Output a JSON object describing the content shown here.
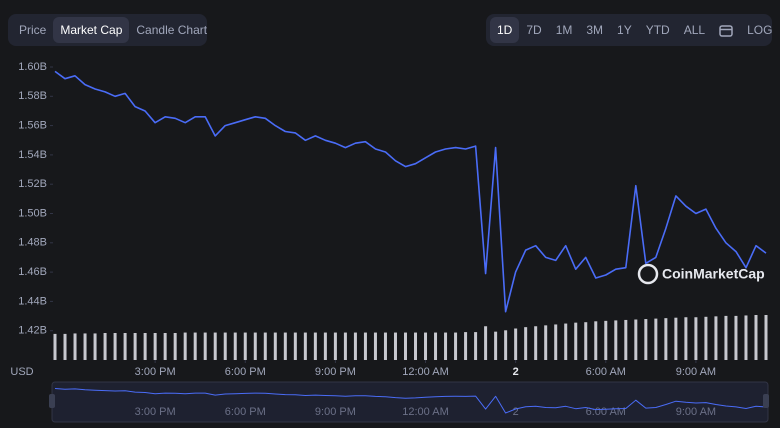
{
  "controls": {
    "views": [
      "Price",
      "Market Cap",
      "Candle Chart"
    ],
    "ranges": [
      "1D",
      "7D",
      "1M",
      "3M",
      "1Y",
      "YTD",
      "ALL"
    ],
    "log": "LOG"
  },
  "watermark": "CoinMarketCap",
  "chart_data": {
    "type": "line",
    "currency": "USD",
    "color": "#4a6cf7",
    "ylim": [
      1.4,
      1.6
    ],
    "yticks": [
      {
        "value": 1.42,
        "label": "1.42B"
      },
      {
        "value": 1.44,
        "label": "1.44B"
      },
      {
        "value": 1.46,
        "label": "1.46B"
      },
      {
        "value": 1.48,
        "label": "1.48B"
      },
      {
        "value": 1.5,
        "label": "1.50B"
      },
      {
        "value": 1.52,
        "label": "1.52B"
      },
      {
        "value": 1.54,
        "label": "1.54B"
      },
      {
        "value": 1.56,
        "label": "1.56B"
      },
      {
        "value": 1.58,
        "label": "1.58B"
      },
      {
        "value": 1.6,
        "label": "1.60B"
      }
    ],
    "xlim": [
      0,
      71
    ],
    "xticks": [
      {
        "value": 10,
        "label": "3:00 PM"
      },
      {
        "value": 19,
        "label": "6:00 PM"
      },
      {
        "value": 28,
        "label": "9:00 PM"
      },
      {
        "value": 37,
        "label": "12:00 AM"
      },
      {
        "value": 46,
        "label": "2"
      },
      {
        "value": 55,
        "label": "6:00 AM"
      },
      {
        "value": 64,
        "label": "9:00 AM"
      }
    ],
    "values": [
      1.597,
      1.592,
      1.594,
      1.588,
      1.585,
      1.583,
      1.58,
      1.582,
      1.573,
      1.57,
      1.562,
      1.566,
      1.565,
      1.562,
      1.566,
      1.566,
      1.553,
      1.56,
      1.562,
      1.564,
      1.566,
      1.565,
      1.56,
      1.556,
      1.555,
      1.55,
      1.553,
      1.55,
      1.548,
      1.545,
      1.548,
      1.549,
      1.544,
      1.542,
      1.536,
      1.532,
      1.534,
      1.538,
      1.542,
      1.544,
      1.545,
      1.544,
      1.546,
      1.459,
      1.545,
      1.433,
      1.46,
      1.475,
      1.478,
      1.47,
      1.468,
      1.478,
      1.462,
      1.47,
      1.456,
      1.458,
      1.462,
      1.463,
      1.519,
      1.466,
      1.47,
      1.49,
      1.512,
      1.505,
      1.5,
      1.503,
      1.49,
      1.48,
      1.474,
      1.463,
      1.478,
      1.473
    ],
    "volume": {
      "color": "#e6e8ee",
      "vlim": [
        0,
        100
      ],
      "values": [
        58,
        58,
        59,
        59,
        59,
        60,
        60,
        60,
        60,
        60,
        60,
        60,
        60,
        61,
        61,
        61,
        61,
        61,
        61,
        61,
        61,
        61,
        61,
        61,
        61,
        61,
        61,
        61,
        61,
        61,
        61,
        61,
        61,
        61,
        61,
        61,
        61,
        61,
        61,
        61,
        61,
        62,
        62,
        75,
        63,
        66,
        70,
        73,
        75,
        77,
        79,
        81,
        83,
        84,
        86,
        87,
        88,
        89,
        90,
        91,
        92,
        93,
        94,
        95,
        95,
        96,
        97,
        98,
        98,
        99,
        100,
        100
      ]
    }
  }
}
